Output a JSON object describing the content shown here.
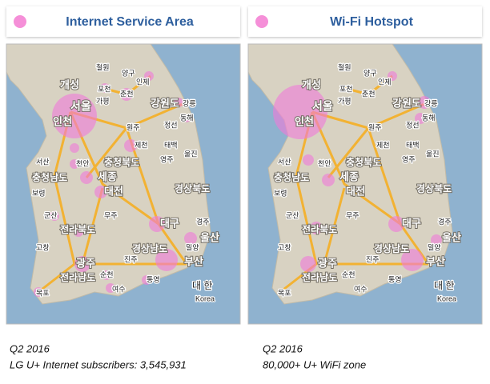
{
  "panels": [
    {
      "title": "Internet Service Area",
      "caption": {
        "period": "Q2 2016",
        "text": "LG U+ Internet subscribers: 3,545,931"
      }
    },
    {
      "title": "Wi-Fi Hotspot",
      "caption": {
        "period": "Q2 2016",
        "text": "80,000+ U+ WiFi zone"
      }
    }
  ],
  "map_labels": [
    "개성",
    "서울",
    "인천",
    "강원도",
    "철원",
    "양구",
    "인제",
    "포천",
    "춘천",
    "가평",
    "강릉",
    "동해",
    "원주",
    "정선",
    "제천",
    "태백",
    "울진",
    "충청북도",
    "서산",
    "천안",
    "충청남도",
    "세종",
    "대전",
    "보령",
    "영주",
    "경상북도",
    "군산",
    "무주",
    "전라북도",
    "대구",
    "경주",
    "울산",
    "경상남도",
    "진주",
    "밀양",
    "광주",
    "부산",
    "고창",
    "전라남도",
    "순천",
    "목포",
    "여수",
    "통영",
    "대 한",
    "Korea"
  ]
}
